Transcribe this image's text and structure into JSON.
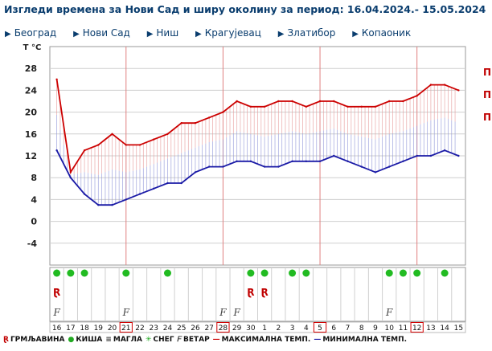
{
  "header": {
    "title": "Изгледи времена за Нови Сад и ширу околину за период: 16.04.2024.- 15.05.2024"
  },
  "nav": {
    "items": [
      {
        "label": "Београд"
      },
      {
        "label": "Нови Сад"
      },
      {
        "label": "Ниш"
      },
      {
        "label": "Крагујевац"
      },
      {
        "label": "Златибор"
      },
      {
        "label": "Копаоник"
      }
    ]
  },
  "side_marks": [
    "П",
    "П",
    "П"
  ],
  "chart_data": {
    "type": "line",
    "ylabel": "T °C",
    "yticks": [
      28,
      24,
      20,
      16,
      12,
      8,
      4,
      0,
      -4
    ],
    "ylim": [
      -8,
      32
    ],
    "x": [
      "16",
      "17",
      "18",
      "19",
      "20",
      "21",
      "22",
      "23",
      "24",
      "25",
      "26",
      "27",
      "28",
      "29",
      "30",
      "1",
      "2",
      "3",
      "4",
      "5",
      "6",
      "7",
      "8",
      "9",
      "10",
      "11",
      "12",
      "13",
      "14",
      "15"
    ],
    "highlighted_days": [
      "21",
      "28",
      "5",
      "12"
    ],
    "series": [
      {
        "name": "МАКСИМАЛНА ТЕМП.",
        "color": "#cc0000",
        "values": [
          26,
          9,
          13,
          14,
          16,
          14,
          14,
          15,
          16,
          18,
          18,
          19,
          20,
          22,
          21,
          21,
          22,
          22,
          21,
          22,
          22,
          21,
          21,
          21,
          22,
          22,
          23,
          25,
          25,
          24
        ]
      },
      {
        "name": "МИНИМАЛНА ТЕМП.",
        "color": "#1a1aa6",
        "values": [
          13,
          8,
          5,
          3,
          3,
          4,
          5,
          6,
          7,
          7,
          9,
          10,
          10,
          11,
          11,
          10,
          10,
          11,
          11,
          11,
          12,
          11,
          10,
          9,
          10,
          11,
          12,
          12,
          13,
          12
        ]
      }
    ],
    "weather": {
      "rain_days": [
        "16",
        "17",
        "18",
        "21",
        "24",
        "30",
        "1",
        "3",
        "4",
        "10",
        "11",
        "12",
        "14"
      ],
      "thunder_days": [
        "16",
        "30",
        "1"
      ],
      "wind_days": [
        "16",
        "21",
        "28",
        "29",
        "10"
      ]
    }
  },
  "legend": {
    "items": [
      {
        "symbol": "Ɽ",
        "label": "ГРМЉАВИНА",
        "color": "#c00000"
      },
      {
        "symbol": "●",
        "label": "КИША",
        "color": "#22aa22"
      },
      {
        "symbol": "≡",
        "label": "МАГЛА",
        "color": "#333333"
      },
      {
        "symbol": "✳",
        "label": "СНЕГ",
        "color": "#22aa22"
      },
      {
        "symbol": "𝐹",
        "label": "ВЕТАР",
        "color": "#333333"
      },
      {
        "symbol": "—",
        "label": "МАКСИМАЛНА ТЕМП.",
        "color": "#cc0000"
      },
      {
        "symbol": "—",
        "label": "МИНИМАЛНА ТЕМП.",
        "color": "#1a1aa6"
      }
    ]
  }
}
